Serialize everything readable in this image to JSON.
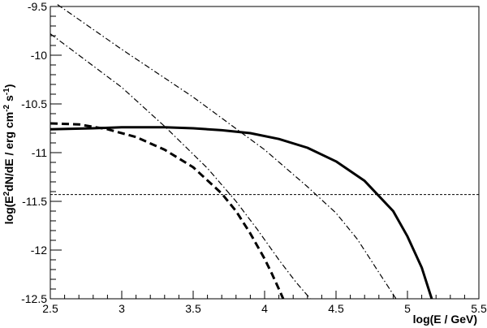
{
  "chart_data": {
    "type": "line",
    "xlabel": "log(E / GeV)",
    "ylabel_parts": [
      "log(E",
      "2",
      "dN/dE / erg cm",
      "-2",
      " s",
      "-1",
      ")"
    ],
    "xlim": [
      2.5,
      5.5
    ],
    "ylim": [
      -12.5,
      -9.5
    ],
    "grid": false,
    "legend": "none",
    "x_ticks": [
      2.5,
      3,
      3.5,
      4,
      4.5,
      5,
      5.5
    ],
    "x_tick_labels": [
      "2.5",
      "3",
      "3.5",
      "4",
      "4.5",
      "5",
      "5.5"
    ],
    "y_ticks": [
      -12.5,
      -12,
      -11.5,
      -11,
      -10.5,
      -10,
      -9.5
    ],
    "y_tick_labels": [
      "-12.5",
      "-12",
      "-11.5",
      "-11",
      "-10.5",
      "-10",
      "-9.5"
    ],
    "series": [
      {
        "style": "solid-thick",
        "x": [
          2.5,
          2.8,
          3.0,
          3.3,
          3.5,
          3.7,
          3.9,
          4.1,
          4.3,
          4.5,
          4.7,
          4.9,
          5.0,
          5.1,
          5.17
        ],
        "y": [
          -10.76,
          -10.75,
          -10.74,
          -10.74,
          -10.75,
          -10.77,
          -10.8,
          -10.86,
          -10.95,
          -11.09,
          -11.29,
          -11.6,
          -11.86,
          -12.18,
          -12.5
        ]
      },
      {
        "style": "dashed-thick",
        "x": [
          2.5,
          2.7,
          2.9,
          3.1,
          3.3,
          3.5,
          3.7,
          3.8,
          3.9,
          4.0,
          4.05,
          4.1,
          4.13
        ],
        "y": [
          -10.7,
          -10.71,
          -10.76,
          -10.84,
          -10.97,
          -11.15,
          -11.42,
          -11.6,
          -11.83,
          -12.09,
          -12.24,
          -12.4,
          -12.5
        ]
      },
      {
        "style": "dash-dot-upper",
        "x": [
          2.55,
          3.0,
          3.5,
          4.0,
          4.3,
          4.5,
          4.65,
          4.8,
          4.92
        ],
        "y": [
          -9.48,
          -9.94,
          -10.43,
          -10.97,
          -11.35,
          -11.62,
          -11.89,
          -12.23,
          -12.5
        ]
      },
      {
        "style": "dash-dot-lower",
        "x": [
          2.5,
          2.7,
          3.0,
          3.3,
          3.6,
          3.8,
          3.95,
          4.1,
          4.22,
          4.32
        ],
        "y": [
          -9.78,
          -10.0,
          -10.33,
          -10.73,
          -11.16,
          -11.5,
          -11.79,
          -12.1,
          -12.33,
          -12.5
        ]
      },
      {
        "style": "dotted-horizontal",
        "x": [
          2.5,
          5.5
        ],
        "y": [
          -11.43,
          -11.43
        ]
      }
    ]
  }
}
